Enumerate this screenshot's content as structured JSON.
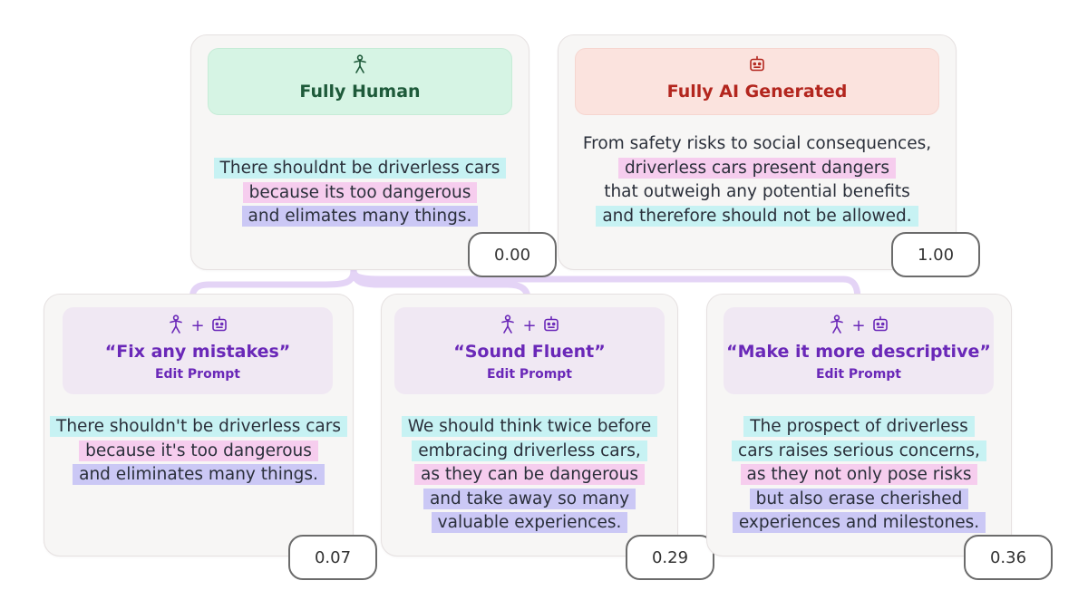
{
  "cards": {
    "human": {
      "icon": "person-icon",
      "title": "Fully Human",
      "lines": [
        {
          "text": "There shouldnt be driverless cars",
          "hl": "cyan"
        },
        {
          "text": "because its too dangerous",
          "hl": "pink"
        },
        {
          "text": "and elimates many things.",
          "hl": "violet"
        }
      ],
      "score": "0.00"
    },
    "ai": {
      "icon": "robot-icon",
      "title": "Fully AI Generated",
      "lines": [
        {
          "text": "From safety risks to social consequences,",
          "hl": "none"
        },
        {
          "text": "driverless cars present dangers",
          "hl": "pink"
        },
        {
          "text": "that outweigh any potential benefits",
          "hl": "none"
        },
        {
          "text": "and therefore should not be allowed.",
          "hl": "cyan"
        }
      ],
      "score": "1.00"
    },
    "fix": {
      "title": "“Fix any mistakes”",
      "subtitle": "Edit Prompt",
      "lines": [
        {
          "text": "There shouldn't be driverless cars",
          "hl": "cyan"
        },
        {
          "text": "because it's too dangerous",
          "hl": "pink"
        },
        {
          "text": "and eliminates many things.",
          "hl": "violet"
        }
      ],
      "score": "0.07"
    },
    "fluent": {
      "title": "“Sound Fluent”",
      "subtitle": "Edit Prompt",
      "lines": [
        {
          "text": "We should think twice before",
          "hl": "cyan"
        },
        {
          "text": "embracing driverless cars,",
          "hl": "cyan"
        },
        {
          "text": "as they can be dangerous",
          "hl": "pink"
        },
        {
          "text": "and take away so many",
          "hl": "violet"
        },
        {
          "text": "valuable experiences.",
          "hl": "violet"
        }
      ],
      "score": "0.29"
    },
    "descriptive": {
      "title": "“Make it more descriptive”",
      "subtitle": "Edit Prompt",
      "lines": [
        {
          "text": "The prospect of driverless",
          "hl": "cyan"
        },
        {
          "text": "cars raises serious concerns,",
          "hl": "cyan"
        },
        {
          "text": "as they not only pose risks",
          "hl": "pink"
        },
        {
          "text": "but also erase cherished",
          "hl": "violet"
        },
        {
          "text": "experiences and milestones.",
          "hl": "violet"
        }
      ],
      "score": "0.36"
    }
  },
  "colors": {
    "cyan": "#c7f2f3",
    "pink": "#f6cdee",
    "violet": "#cbc8f5",
    "connector": "#e4d4f6",
    "accent_purple": "#6a28b8"
  }
}
